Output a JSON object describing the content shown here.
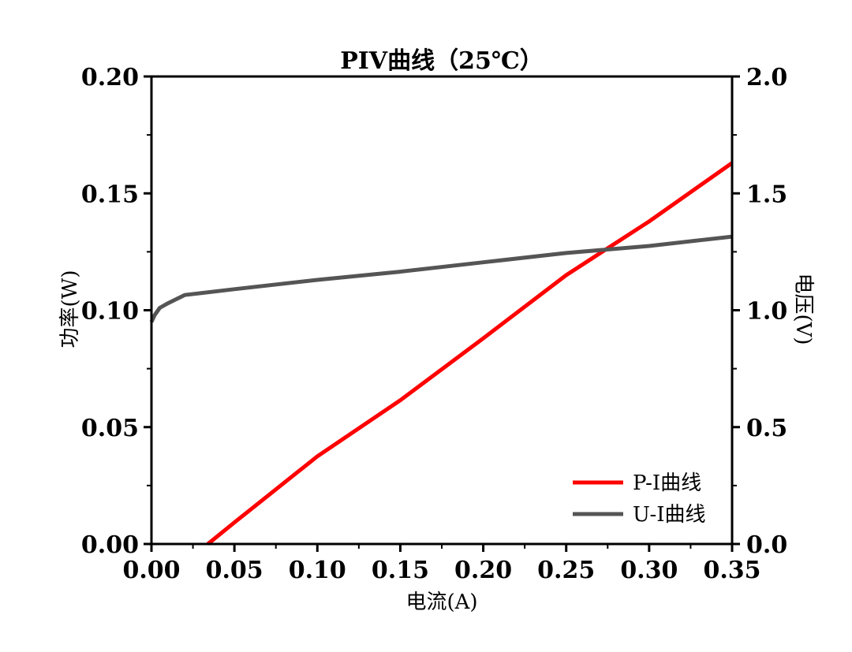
{
  "chart_data": {
    "type": "line",
    "title": "PIV曲线（25℃）",
    "xlabel": "电流(A)",
    "ylabel_left": "功率(W)",
    "ylabel_right": "电压(V)",
    "xlim": [
      0,
      0.35
    ],
    "ylim_left": [
      0,
      0.2
    ],
    "ylim_right": [
      0,
      2.0
    ],
    "x_ticks": [
      "0.00",
      "0.05",
      "0.10",
      "0.15",
      "0.20",
      "0.25",
      "0.30",
      "0.35"
    ],
    "y_left_ticks": [
      "0.00",
      "0.05",
      "0.10",
      "0.15",
      "0.20"
    ],
    "y_right_ticks": [
      "0.0",
      "0.5",
      "1.0",
      "1.5",
      "2.0"
    ],
    "grid": false,
    "legend_position": "bottom-right",
    "series": [
      {
        "name": "P-I曲线",
        "axis": "left",
        "color": "#ff0000",
        "points": [
          [
            0.034,
            0.0
          ],
          [
            0.05,
            0.0092
          ],
          [
            0.1,
            0.0375
          ],
          [
            0.15,
            0.0615
          ],
          [
            0.2,
            0.088
          ],
          [
            0.25,
            0.115
          ],
          [
            0.3,
            0.138
          ],
          [
            0.35,
            0.163
          ]
        ]
      },
      {
        "name": "U-I曲线",
        "axis": "right",
        "color": "#555555",
        "points": [
          [
            0.0,
            0.95
          ],
          [
            0.002,
            0.98
          ],
          [
            0.005,
            1.01
          ],
          [
            0.01,
            1.03
          ],
          [
            0.02,
            1.065
          ],
          [
            0.05,
            1.09
          ],
          [
            0.1,
            1.13
          ],
          [
            0.15,
            1.165
          ],
          [
            0.2,
            1.205
          ],
          [
            0.25,
            1.245
          ],
          [
            0.3,
            1.275
          ],
          [
            0.35,
            1.315
          ]
        ]
      }
    ]
  }
}
